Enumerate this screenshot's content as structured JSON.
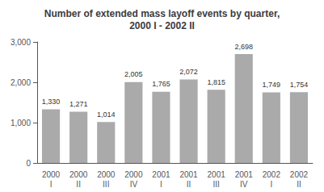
{
  "chart_data": {
    "type": "bar",
    "title": "Number of extended mass layoff events by quarter,\n2000 I - 2002 II",
    "categories": [
      "2000\nI",
      "2000\nII",
      "2000\nIII",
      "2000\nIV",
      "2001\nI",
      "2001\nII",
      "2001\nIII",
      "2001\nIV",
      "2002\nI",
      "2002\nII"
    ],
    "values": [
      1330,
      1271,
      1014,
      2005,
      1765,
      2072,
      1815,
      2698,
      1749,
      1754
    ],
    "value_labels": [
      "1,330",
      "1,271",
      "1,014",
      "2,005",
      "1,765",
      "2,072",
      "1,815",
      "2,698",
      "1,749",
      "1,754"
    ],
    "color": "#aaaaaa",
    "ylim": [
      0,
      3000
    ],
    "yticks": [
      0,
      {
        "value": 1000,
        "label": "1,000"
      },
      {
        "value": 2000,
        "label": "2,000"
      },
      {
        "value": 3000,
        "label": "3,000"
      }
    ],
    "grid": false,
    "data_labels": true
  }
}
